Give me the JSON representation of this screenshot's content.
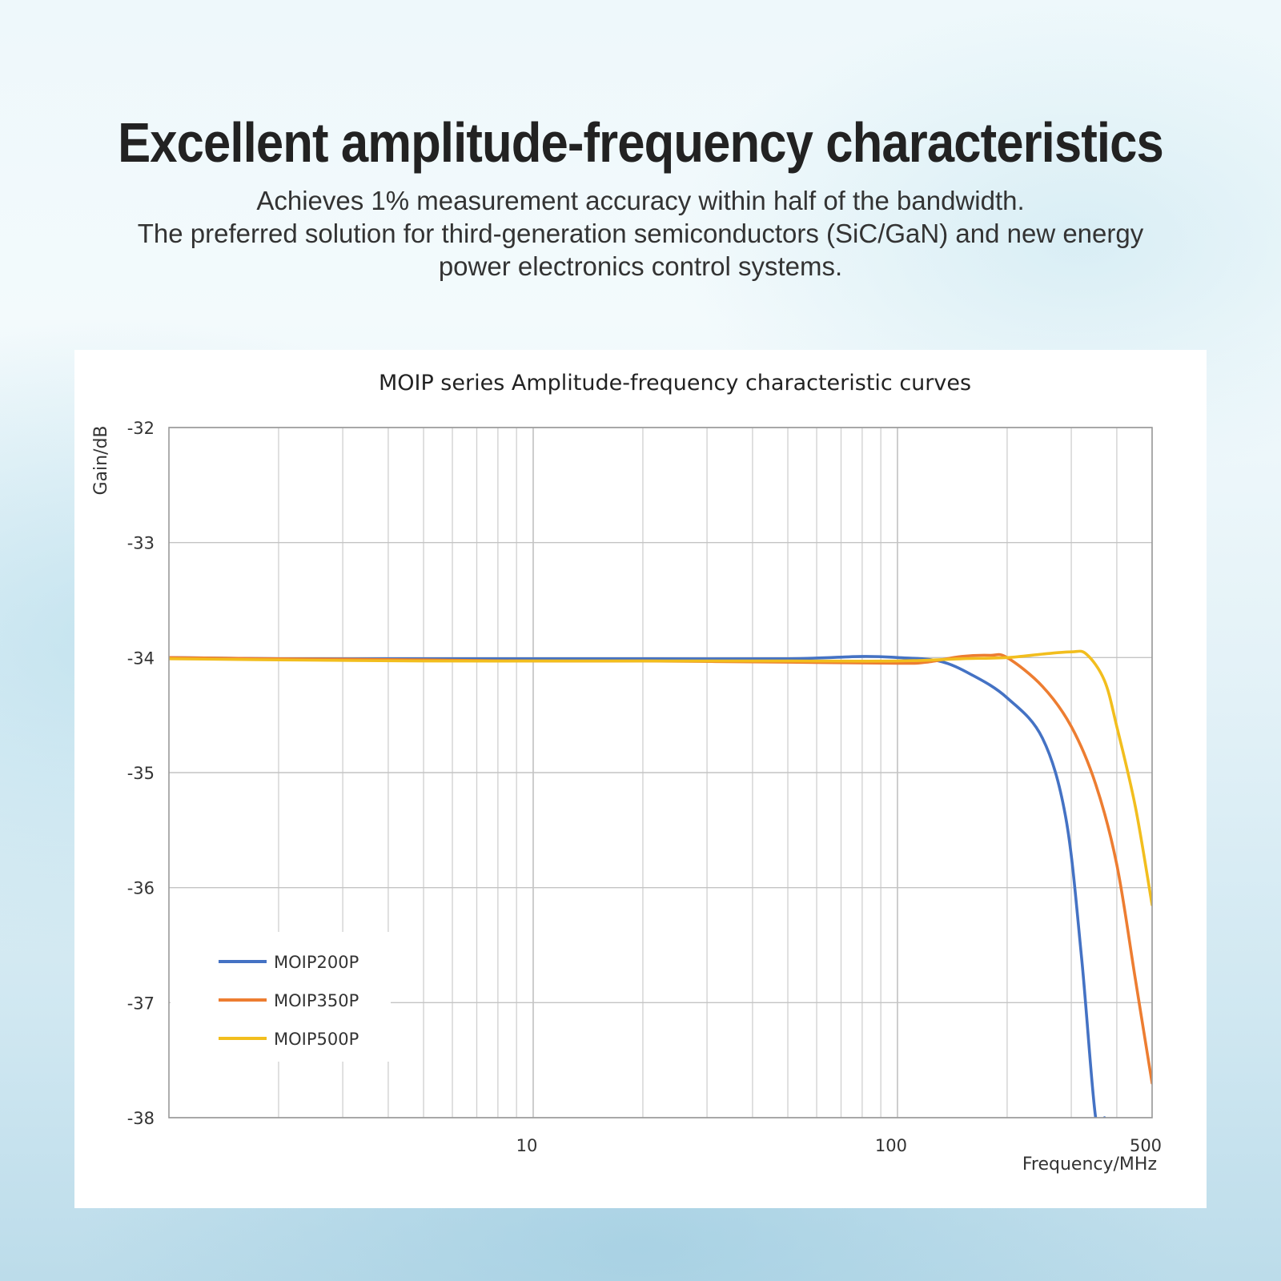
{
  "headline": "Excellent amplitude-frequency characteristics",
  "subtitle": {
    "line1": "Achieves 1% measurement accuracy within half of the bandwidth.",
    "line2": "The preferred solution for third-generation semiconductors (SiC/GaN) and new energy",
    "line3": "power electronics control systems."
  },
  "chart_data": {
    "type": "line",
    "title": "MOIP series Amplitude-frequency characteristic curves",
    "xlabel": "Frequency/MHz",
    "ylabel": "Gain/dB",
    "xscale": "log",
    "xlim": [
      1,
      500
    ],
    "ylim": [
      -38,
      -32
    ],
    "xtick_labels": [
      "10",
      "100",
      "500"
    ],
    "xticks": [
      10,
      100,
      500
    ],
    "yticks": [
      -32,
      -33,
      -34,
      -35,
      -36,
      -37,
      -38
    ],
    "ytick_labels": [
      "-32",
      "-33",
      "-34",
      "-35",
      "-36",
      "-37",
      "-38"
    ],
    "grid": true,
    "legend_position": "bottom-left",
    "series": [
      {
        "name": "MOIP200P",
        "color": "#4472C4",
        "x": [
          1,
          2,
          5,
          10,
          20,
          50,
          80,
          100,
          130,
          160,
          200,
          250,
          290,
          320,
          350,
          370
        ],
        "y": [
          -34.0,
          -34.01,
          -34.01,
          -34.01,
          -34.01,
          -34.01,
          -33.99,
          -34.0,
          -34.03,
          -34.15,
          -34.35,
          -34.7,
          -35.4,
          -36.6,
          -38.0,
          -38.0
        ]
      },
      {
        "name": "MOIP350P",
        "color": "#ED7D31",
        "x": [
          1,
          2,
          5,
          10,
          20,
          50,
          100,
          120,
          150,
          180,
          200,
          250,
          300,
          350,
          400,
          450,
          500
        ],
        "y": [
          -34.0,
          -34.01,
          -34.02,
          -34.03,
          -34.03,
          -34.04,
          -34.05,
          -34.04,
          -33.99,
          -33.98,
          -34.0,
          -34.25,
          -34.6,
          -35.1,
          -35.8,
          -36.8,
          -37.7
        ]
      },
      {
        "name": "MOIP500P",
        "color": "#F2BE1E",
        "x": [
          1,
          2,
          5,
          10,
          20,
          50,
          100,
          150,
          200,
          250,
          300,
          330,
          370,
          400,
          450,
          500
        ],
        "y": [
          -34.01,
          -34.02,
          -34.03,
          -34.03,
          -34.03,
          -34.03,
          -34.03,
          -34.01,
          -34.0,
          -33.97,
          -33.95,
          -33.97,
          -34.2,
          -34.6,
          -35.3,
          -36.15
        ]
      }
    ]
  }
}
